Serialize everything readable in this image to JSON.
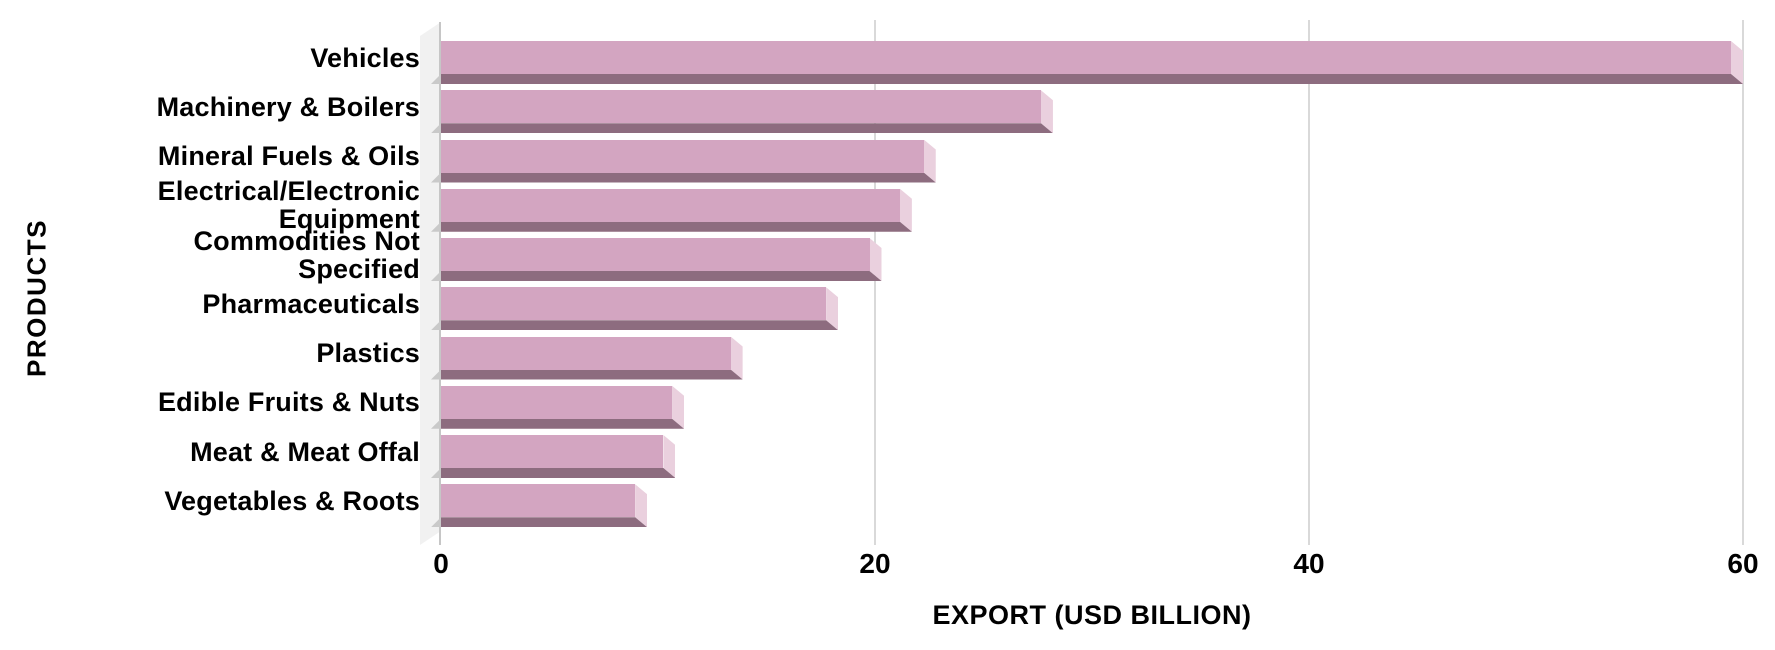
{
  "chart_data": {
    "type": "bar",
    "orientation": "horizontal",
    "style": "3d-bevel",
    "title": "",
    "xlabel": "EXPORT (USD BILLION)",
    "ylabel": "PRODUCTS",
    "categories": [
      "Vehicles",
      "Machinery & Boilers",
      "Mineral Fuels & Oils",
      "Electrical/Electronic Equipment",
      "Commodities Not Specified",
      "Pharmaceuticals",
      "Plastics",
      "Edible Fruits & Nuts",
      "Meat & Meat Offal",
      "Vegetables & Roots"
    ],
    "values": [
      60,
      28.2,
      22.8,
      21.7,
      20.3,
      18.3,
      13.9,
      11.2,
      10.8,
      9.5
    ],
    "xlim": [
      0,
      60
    ],
    "xticks": [
      0,
      20,
      40,
      60
    ],
    "grid": true,
    "legend": "none",
    "colors": {
      "bar_face": "#d3a5c1",
      "bar_bevel_light": "#ead0de",
      "bar_bevel_dark": "#8d6c7f",
      "gridline": "#d9d9d9",
      "axis_line": "#c6c6c6",
      "wall": "#f1f1f1",
      "text": "#000000",
      "background": "#ffffff"
    }
  }
}
